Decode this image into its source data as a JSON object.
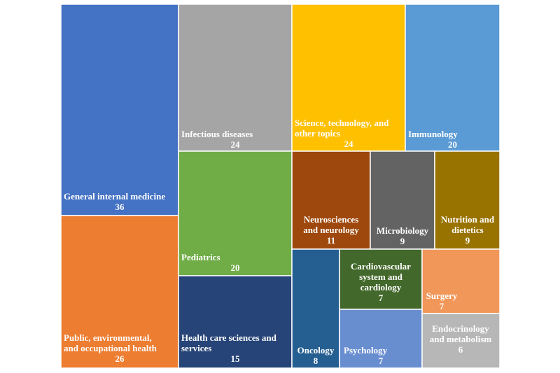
{
  "chart_data": {
    "type": "treemap",
    "title": "",
    "items": [
      {
        "label": [
          "General internal medicine"
        ],
        "value": 36,
        "color": "#4472C4"
      },
      {
        "label": [
          "Public, environmental,",
          "and occupational health"
        ],
        "value": 26,
        "color": "#ED7D31"
      },
      {
        "label": [
          "Infectious diseases"
        ],
        "value": 24,
        "color": "#A5A5A5"
      },
      {
        "label": [
          "Science, technology, and",
          "other topics"
        ],
        "value": 24,
        "color": "#FFC000"
      },
      {
        "label": [
          "Immunology"
        ],
        "value": 20,
        "color": "#5B9BD5"
      },
      {
        "label": [
          "Pediatrics"
        ],
        "value": 20,
        "color": "#70AD47"
      },
      {
        "label": [
          "Health care sciences and",
          "services"
        ],
        "value": 15,
        "color": "#264478"
      },
      {
        "label": [
          "Neurosciences",
          "and neurology"
        ],
        "value": 11,
        "color": "#9E480E"
      },
      {
        "label": [
          "Microbiology"
        ],
        "value": 9,
        "color": "#636363"
      },
      {
        "label": [
          "Nutrition and",
          "dietetics"
        ],
        "value": 9,
        "color": "#997300"
      },
      {
        "label": [
          "Oncology"
        ],
        "value": 8,
        "color": "#255E91"
      },
      {
        "label": [
          "Cardiovascular",
          "system and",
          "cardiology"
        ],
        "value": 7,
        "color": "#43682B"
      },
      {
        "label": [
          "Surgery"
        ],
        "value": 7,
        "color": "#F1975A"
      },
      {
        "label": [
          "Psychology"
        ],
        "value": 7,
        "color": "#698ED0"
      },
      {
        "label": [
          "Endocrinology",
          "and metabolism"
        ],
        "value": 6,
        "color": "#B7B7B7"
      }
    ]
  }
}
